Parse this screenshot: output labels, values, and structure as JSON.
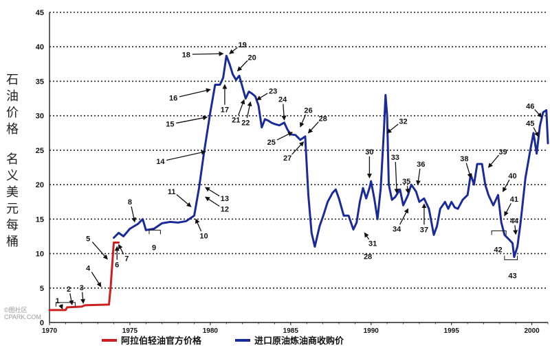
{
  "chart_data": {
    "type": "line",
    "title": "",
    "ylabel_lines": [
      "石油价格",
      "名义美元每桶"
    ],
    "ylim": [
      0,
      45
    ],
    "xlim": [
      1970,
      2001
    ],
    "yticks": [
      "0",
      "5",
      "10",
      "15",
      "20",
      "25",
      "30",
      "35",
      "40",
      "45"
    ],
    "xticks": [
      "1970",
      "1975",
      "1980",
      "1985",
      "1990",
      "1995",
      "2000"
    ],
    "grid": true,
    "legend_position": "bottom",
    "series": [
      {
        "name": "阿拉伯轻油官方价格",
        "color": "#cc1f1f",
        "points": [
          [
            1970.0,
            1.8
          ],
          [
            1971.0,
            1.8
          ],
          [
            1971.1,
            2.2
          ],
          [
            1972.0,
            2.3
          ],
          [
            1972.2,
            2.5
          ],
          [
            1973.7,
            2.6
          ],
          [
            1973.8,
            5.1
          ],
          [
            1974.0,
            11.6
          ],
          [
            1974.3,
            11.6
          ]
        ]
      },
      {
        "name": "进口原油炼油商收购价",
        "color": "#1b2a99",
        "points": [
          [
            1974.0,
            12.3
          ],
          [
            1974.3,
            13.0
          ],
          [
            1974.6,
            12.5
          ],
          [
            1975.0,
            13.6
          ],
          [
            1975.5,
            14.3
          ],
          [
            1975.8,
            15.0
          ],
          [
            1976.0,
            13.4
          ],
          [
            1976.5,
            13.6
          ],
          [
            1977.0,
            14.4
          ],
          [
            1977.5,
            14.6
          ],
          [
            1978.0,
            14.5
          ],
          [
            1978.5,
            14.7
          ],
          [
            1979.0,
            15.5
          ],
          [
            1979.3,
            19.5
          ],
          [
            1979.6,
            24.5
          ],
          [
            1980.0,
            30.5
          ],
          [
            1980.3,
            34.5
          ],
          [
            1980.6,
            34.5
          ],
          [
            1980.8,
            35.5
          ],
          [
            1981.0,
            38.7
          ],
          [
            1981.2,
            37.5
          ],
          [
            1981.4,
            36.0
          ],
          [
            1981.6,
            35.2
          ],
          [
            1981.8,
            35.8
          ],
          [
            1982.0,
            34.2
          ],
          [
            1982.2,
            32.5
          ],
          [
            1982.4,
            33.5
          ],
          [
            1982.6,
            33.2
          ],
          [
            1982.8,
            32.8
          ],
          [
            1983.0,
            31.5
          ],
          [
            1983.2,
            28.3
          ],
          [
            1983.4,
            29.5
          ],
          [
            1983.6,
            29.3
          ],
          [
            1983.8,
            29.0
          ],
          [
            1984.0,
            28.8
          ],
          [
            1984.3,
            28.6
          ],
          [
            1984.6,
            29.0
          ],
          [
            1984.8,
            28.0
          ],
          [
            1985.0,
            27.3
          ],
          [
            1985.3,
            27.2
          ],
          [
            1985.6,
            26.5
          ],
          [
            1985.9,
            27.0
          ],
          [
            1986.1,
            18.5
          ],
          [
            1986.3,
            13.0
          ],
          [
            1986.5,
            11.0
          ],
          [
            1986.8,
            14.0
          ],
          [
            1987.0,
            15.3
          ],
          [
            1987.3,
            17.5
          ],
          [
            1987.6,
            18.8
          ],
          [
            1987.8,
            19.3
          ],
          [
            1988.0,
            18.0
          ],
          [
            1988.3,
            15.5
          ],
          [
            1988.6,
            15.5
          ],
          [
            1988.9,
            13.5
          ],
          [
            1989.1,
            14.5
          ],
          [
            1989.3,
            17.5
          ],
          [
            1989.5,
            19.5
          ],
          [
            1989.7,
            18.0
          ],
          [
            1989.9,
            19.5
          ],
          [
            1990.0,
            20.5
          ],
          [
            1990.2,
            18.0
          ],
          [
            1990.4,
            15.0
          ],
          [
            1990.6,
            19.5
          ],
          [
            1990.8,
            28.0
          ],
          [
            1990.9,
            33.0
          ],
          [
            1991.0,
            30.0
          ],
          [
            1991.1,
            20.0
          ],
          [
            1991.3,
            17.8
          ],
          [
            1991.5,
            18.2
          ],
          [
            1991.8,
            19.3
          ],
          [
            1992.0,
            17.0
          ],
          [
            1992.3,
            18.5
          ],
          [
            1992.5,
            20.0
          ],
          [
            1992.8,
            19.0
          ],
          [
            1993.0,
            17.5
          ],
          [
            1993.3,
            18.0
          ],
          [
            1993.6,
            16.5
          ],
          [
            1993.9,
            12.7
          ],
          [
            1994.1,
            14.0
          ],
          [
            1994.3,
            16.5
          ],
          [
            1994.6,
            17.5
          ],
          [
            1994.8,
            16.5
          ],
          [
            1995.0,
            17.5
          ],
          [
            1995.2,
            16.7
          ],
          [
            1995.4,
            16.5
          ],
          [
            1995.7,
            17.8
          ],
          [
            1996.0,
            18.5
          ],
          [
            1996.2,
            21.5
          ],
          [
            1996.4,
            20.0
          ],
          [
            1996.6,
            23.0
          ],
          [
            1996.9,
            23.0
          ],
          [
            1997.1,
            20.0
          ],
          [
            1997.3,
            18.5
          ],
          [
            1997.6,
            17.0
          ],
          [
            1997.9,
            18.5
          ],
          [
            1998.1,
            14.5
          ],
          [
            1998.3,
            12.7
          ],
          [
            1998.6,
            12.0
          ],
          [
            1998.8,
            11.5
          ],
          [
            1998.9,
            9.5
          ],
          [
            1999.1,
            11.0
          ],
          [
            1999.3,
            14.5
          ],
          [
            1999.6,
            21.0
          ],
          [
            1999.9,
            25.0
          ],
          [
            2000.1,
            27.5
          ],
          [
            2000.3,
            24.5
          ],
          [
            2000.5,
            28.5
          ],
          [
            2000.7,
            30.5
          ],
          [
            2000.9,
            30.8
          ],
          [
            2001.0,
            26.0
          ]
        ]
      }
    ],
    "annotations": [
      {
        "label": "1",
        "text_at": [
          1970.5,
          3.2
        ],
        "point_at": [
          1970.8,
          2.0
        ]
      },
      {
        "label": "2",
        "text_at": [
          1971.2,
          4.9
        ],
        "point_at": [
          1971.4,
          2.6
        ]
      },
      {
        "label": "3",
        "text_at": [
          1972.0,
          5.1
        ],
        "point_at": [
          1972.1,
          2.8
        ]
      },
      {
        "label": "4",
        "text_at": [
          1972.4,
          7.9
        ],
        "point_at": [
          1973.2,
          5.2
        ]
      },
      {
        "label": "5",
        "text_at": [
          1972.4,
          12.2
        ],
        "point_at": [
          1973.6,
          9.2
        ]
      },
      {
        "label": "6",
        "text_at": [
          1974.2,
          8.4
        ],
        "point_at": [
          1974.2,
          11.0
        ]
      },
      {
        "label": "7",
        "text_at": [
          1974.8,
          9.3
        ],
        "point_at": [
          1974.3,
          11.3
        ]
      },
      {
        "label": "8",
        "text_at": [
          1975.0,
          17.5
        ],
        "point_at": [
          1975.3,
          14.6
        ]
      },
      {
        "label": "9",
        "text_at": [
          1976.5,
          10.9
        ],
        "point_at": null
      },
      {
        "label": "10",
        "text_at": [
          1979.6,
          12.6
        ],
        "point_at": [
          1979.1,
          15.0
        ]
      },
      {
        "label": "11",
        "text_at": [
          1977.6,
          19.0
        ],
        "point_at": [
          1978.8,
          16.8
        ]
      },
      {
        "label": "12",
        "text_at": [
          1980.9,
          16.5
        ],
        "point_at": [
          1979.7,
          18.2
        ]
      },
      {
        "label": "13",
        "text_at": [
          1980.9,
          18.0
        ],
        "point_at": [
          1979.7,
          19.6
        ]
      },
      {
        "label": "14",
        "text_at": [
          1976.9,
          23.4
        ],
        "point_at": [
          1979.7,
          24.8
        ]
      },
      {
        "label": "15",
        "text_at": [
          1977.5,
          28.8
        ],
        "point_at": [
          1979.8,
          29.8
        ]
      },
      {
        "label": "16",
        "text_at": [
          1977.7,
          32.6
        ],
        "point_at": [
          1980.0,
          33.8
        ]
      },
      {
        "label": "17",
        "text_at": [
          1980.9,
          30.9
        ],
        "point_at": [
          1980.9,
          34.5
        ]
      },
      {
        "label": "18",
        "text_at": [
          1978.5,
          38.9
        ],
        "point_at": [
          1980.8,
          39.0
        ]
      },
      {
        "label": "19",
        "text_at": [
          1982.0,
          40.3
        ],
        "point_at": [
          1981.2,
          39.0
        ]
      },
      {
        "label": "20",
        "text_at": [
          1982.6,
          38.5
        ],
        "point_at": [
          1981.7,
          36.5
        ]
      },
      {
        "label": "21",
        "text_at": [
          1981.6,
          29.4
        ],
        "point_at": [
          1982.1,
          32.3
        ]
      },
      {
        "label": "22",
        "text_at": [
          1982.2,
          29.0
        ],
        "point_at": [
          1982.5,
          32.0
        ]
      },
      {
        "label": "23",
        "text_at": [
          1983.9,
          33.6
        ],
        "point_at": [
          1982.9,
          32.3
        ]
      },
      {
        "label": "24",
        "text_at": [
          1984.5,
          32.4
        ],
        "point_at": [
          1984.6,
          29.4
        ]
      },
      {
        "label": "25",
        "text_at": [
          1983.8,
          26.2
        ],
        "point_at": [
          1985.1,
          27.6
        ]
      },
      {
        "label": "26",
        "text_at": [
          1986.1,
          30.8
        ],
        "point_at": [
          1985.6,
          28.4
        ]
      },
      {
        "label": "27",
        "text_at": [
          1984.8,
          23.9
        ],
        "point_at": [
          1985.8,
          26.2
        ]
      },
      {
        "label": "28",
        "text_at": [
          1987.0,
          29.6
        ],
        "point_at": [
          1986.1,
          27.5
        ]
      },
      {
        "label": "28",
        "text_at": [
          1989.8,
          9.6
        ],
        "point_at": null
      },
      {
        "label": "30",
        "text_at": [
          1989.9,
          24.8
        ],
        "point_at": [
          1989.9,
          21.0
        ]
      },
      {
        "label": "31",
        "text_at": [
          1990.1,
          11.5
        ],
        "point_at": [
          1989.6,
          13.0
        ]
      },
      {
        "label": "32",
        "text_at": [
          1992.0,
          29.2
        ],
        "point_at": [
          1991.0,
          27.5
        ]
      },
      {
        "label": "33",
        "text_at": [
          1991.5,
          24.0
        ],
        "point_at": [
          1991.6,
          18.8
        ]
      },
      {
        "label": "34",
        "text_at": [
          1991.6,
          13.6
        ],
        "point_at": [
          1992.3,
          16.5
        ]
      },
      {
        "label": "35",
        "text_at": [
          1992.2,
          20.5
        ],
        "point_at": [
          1992.3,
          18.8
        ]
      },
      {
        "label": "36",
        "text_at": [
          1993.1,
          23.0
        ],
        "point_at": [
          1992.9,
          20.0
        ]
      },
      {
        "label": "37",
        "text_at": [
          1993.3,
          13.5
        ],
        "point_at": [
          1993.3,
          17.2
        ]
      },
      {
        "label": "38",
        "text_at": [
          1995.8,
          23.8
        ],
        "point_at": [
          1996.2,
          21.0
        ]
      },
      {
        "label": "39",
        "text_at": [
          1998.2,
          24.8
        ],
        "point_at": [
          1997.3,
          22.5
        ]
      },
      {
        "label": "40",
        "text_at": [
          1998.8,
          21.3
        ],
        "point_at": [
          1998.2,
          19.0
        ]
      },
      {
        "label": "41",
        "text_at": [
          1998.9,
          17.9
        ],
        "point_at": [
          1998.3,
          15.5
        ]
      },
      {
        "label": "44",
        "text_at": [
          1998.9,
          14.8
        ],
        "point_at": [
          1999.0,
          12.8
        ]
      },
      {
        "label": "42",
        "text_at": [
          1997.9,
          10.6
        ],
        "point_at": null
      },
      {
        "label": "43",
        "text_at": [
          1998.8,
          6.8
        ],
        "point_at": null
      },
      {
        "label": "45",
        "text_at": [
          1999.9,
          28.9
        ],
        "point_at": [
          2000.4,
          27.0
        ]
      },
      {
        "label": "46",
        "text_at": [
          1999.9,
          31.4
        ],
        "point_at": [
          2000.6,
          29.8
        ]
      }
    ],
    "brackets": [
      {
        "x0": 1970.4,
        "x1": 1971.6,
        "y": 2.9,
        "dir": "down"
      },
      {
        "x0": 1976.2,
        "x1": 1976.9,
        "y": 13.4,
        "dir": "down"
      },
      {
        "x0": 1997.5,
        "x1": 1998.4,
        "y": 13.3,
        "dir": "down"
      },
      {
        "x0": 1998.3,
        "x1": 1999.1,
        "y": 9.1,
        "dir": "up"
      }
    ]
  },
  "watermark": {
    "line1": "©图社区",
    "line2": "CPARK.COM"
  }
}
